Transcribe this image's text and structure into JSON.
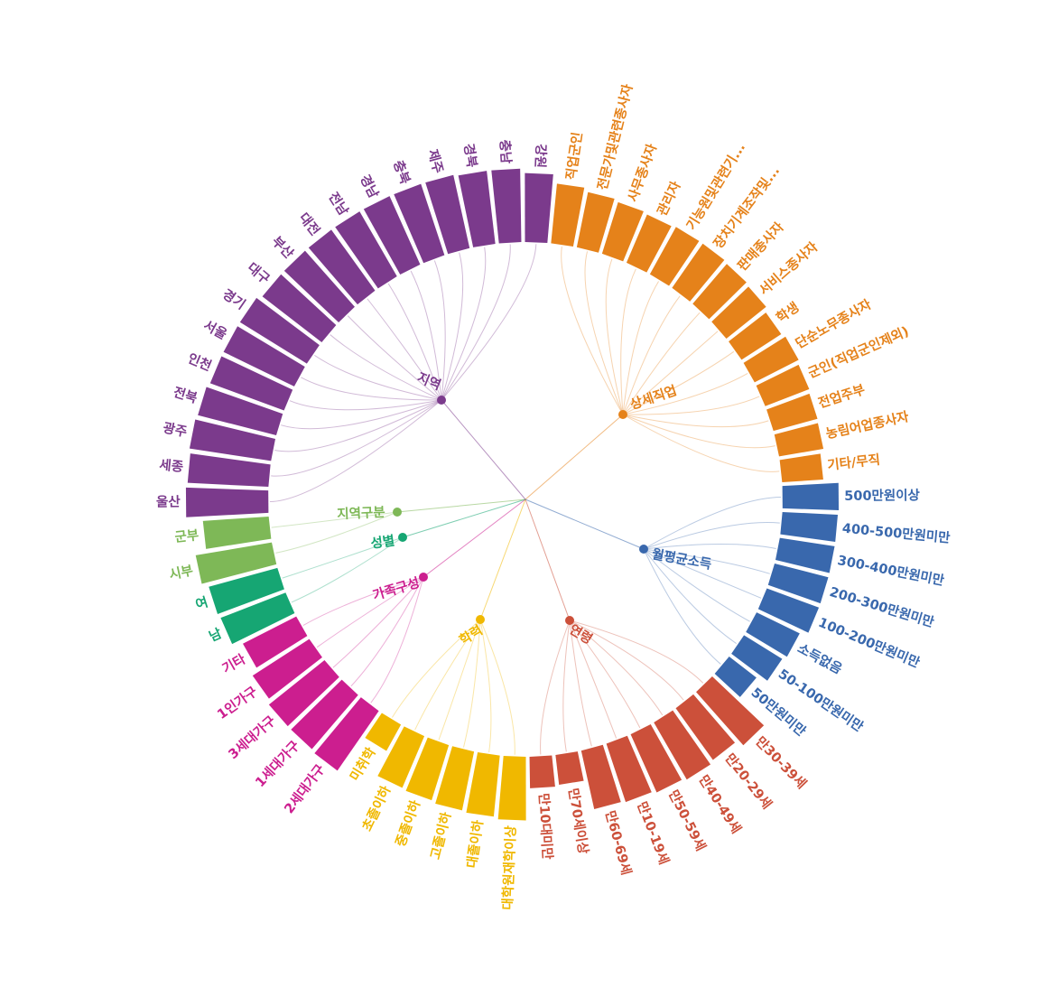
{
  "chart_data": {
    "type": "radial-bar",
    "title": "",
    "groups": [
      {
        "name": "상세직업",
        "color": "#e5821a",
        "categories": [
          "직업군인",
          "전문가및관련종사자",
          "사무종사자",
          "관리자",
          "기능원및관련기...",
          "장치기계조작및...",
          "판매종사자",
          "서비스종사자",
          "학생",
          "단순노무종사자",
          "군인(직업군인제외)",
          "전업주부",
          "농림어업종사자",
          "기타/무직"
        ],
        "values": [
          80,
          75,
          72,
          70,
          72,
          72,
          70,
          68,
          63,
          66,
          63,
          61,
          60,
          55
        ]
      },
      {
        "name": "월평균소득",
        "color": "#3968ad",
        "categories": [
          "500만원이상",
          "400-500만원미만",
          "300-400만원미만",
          "200-300만원미만",
          "100-200만원미만",
          "소득없음",
          "50-100만원미만",
          "50만원미만"
        ],
        "values": [
          75,
          74,
          74,
          74,
          74,
          64,
          60,
          46
        ]
      },
      {
        "name": "연령",
        "color": "#cc503a",
        "categories": [
          "만30-39세",
          "만20-29세",
          "만40-49세",
          "만50-59세",
          "만10-19세",
          "만60-69세",
          "만70세이상",
          "만10대미만"
        ],
        "values": [
          95,
          85,
          88,
          85,
          82,
          80,
          40,
          42
        ]
      },
      {
        "name": "학력",
        "color": "#f0b800",
        "categories": [
          "대학원재학이상",
          "대졸이하",
          "고졸이하",
          "중졸이하",
          "초졸이하",
          "미취학"
        ],
        "values": [
          85,
          82,
          80,
          77,
          75,
          40
        ]
      },
      {
        "name": "가족구성",
        "color": "#cc1e8f",
        "categories": [
          "2세대가구",
          "1세대가구",
          "3세대가구",
          "1인가구",
          "기타"
        ],
        "values": [
          97,
          95,
          95,
          90,
          80
        ]
      },
      {
        "name": "성별",
        "color": "#16a673",
        "categories": [
          "남",
          "여"
        ],
        "values": [
          93,
          95
        ]
      },
      {
        "name": "지역구분",
        "color": "#7eb857",
        "categories": [
          "시부",
          "군부"
        ],
        "values": [
          103,
          88
        ]
      },
      {
        "name": "지역",
        "color": "#7b3a8c",
        "categories": [
          "울산",
          "세종",
          "광주",
          "전북",
          "인천",
          "서울",
          "경기",
          "대구",
          "부산",
          "대전",
          "전남",
          "경남",
          "충북",
          "제주",
          "경북",
          "충남",
          "강원"
        ],
        "values": [
          110,
          108,
          110,
          108,
          105,
          105,
          105,
          100,
          100,
          100,
          100,
          100,
          100,
          100,
          98,
          98,
          92
        ]
      }
    ]
  }
}
